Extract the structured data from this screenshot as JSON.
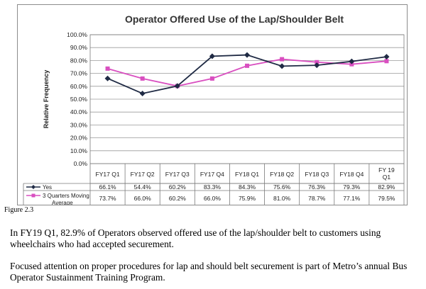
{
  "chart_data": {
    "type": "line",
    "title": "Operator Offered Use of the Lap/Shoulder Belt",
    "ylabel": "Relative Frequency",
    "xlabel": "",
    "ylim": [
      0,
      100
    ],
    "yticks": [
      "0.0%",
      "10.0%",
      "20.0%",
      "30.0%",
      "40.0%",
      "50.0%",
      "60.0%",
      "70.0%",
      "80.0%",
      "90.0%",
      "100.0%"
    ],
    "grid": true,
    "legend": "table-below",
    "categories": [
      "FY17 Q1",
      "FY17 Q2",
      "FY17 Q3",
      "FY17 Q4",
      "FY18 Q1",
      "FY18 Q2",
      "FY18 Q3",
      "FY18 Q4",
      "FY 19 Q1"
    ],
    "series": [
      {
        "name": "Yes",
        "color": "#1f2a44",
        "marker": "diamond",
        "values": [
          66.1,
          54.4,
          60.2,
          83.3,
          84.3,
          75.6,
          76.3,
          79.3,
          82.9
        ],
        "labels": [
          "66.1%",
          "54.4%",
          "60.2%",
          "83.3%",
          "84.3%",
          "75.6%",
          "76.3%",
          "79.3%",
          "82.9%"
        ]
      },
      {
        "name": "3 Quarters Moving Average",
        "color": "#d94fc0",
        "marker": "square",
        "values": [
          73.7,
          66.0,
          60.2,
          66.0,
          75.9,
          81.0,
          78.7,
          77.1,
          79.5
        ],
        "labels": [
          "73.7%",
          "66.0%",
          "60.2%",
          "66.0%",
          "75.9%",
          "81.0%",
          "78.7%",
          "77.1%",
          "79.5%"
        ]
      }
    ]
  },
  "caption": "Figure 2.3",
  "paragraphs": [
    "In FY19 Q1, 82.9% of Operators observed offered use of the lap/shoulder belt to customers using wheelchairs who had accepted securement.",
    "Focused attention on proper procedures for lap and should belt securement is part of Metro’s annual Bus Operator Sustainment Training Program."
  ]
}
